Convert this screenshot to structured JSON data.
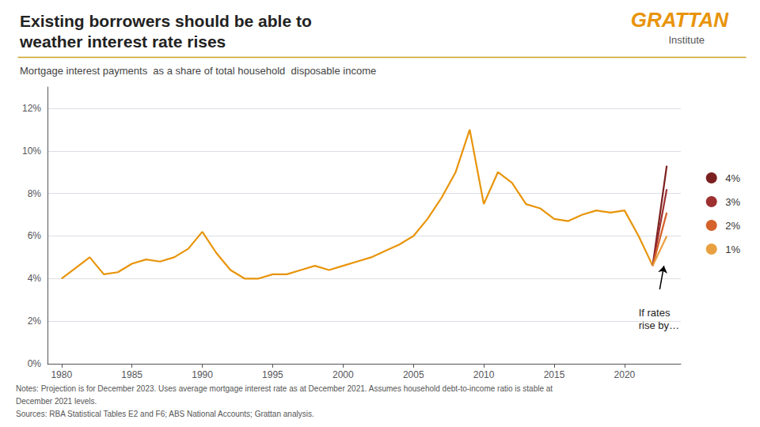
{
  "chart_data": {
    "type": "line",
    "title": "Existing borrowers should be able to\nweather interest rate rises",
    "subtitle": "Mortgage interest payments  as a share of total household  disposable income",
    "logo": [
      "GRATTAN",
      "Institute"
    ],
    "notes": [
      "Notes: Projection is for December 2023. Uses average mortgage interest rate as at December 2021. Assumes household debt-to-income ratio is stable at",
      "December 2021 levels.",
      "Sources: RBA Statistical Tables E2 and F6; ABS National Accounts; Grattan analysis."
    ],
    "annotations": [
      {
        "text": "If rates\nrise by…",
        "x": 2021.0,
        "y": 0.027
      }
    ],
    "arrow": {
      "from": [
        2022.5,
        0.035
      ],
      "to": [
        2022.8,
        0.046
      ]
    },
    "series": [
      {
        "color": "#e8940a",
        "x": [
          1980,
          1981,
          1982,
          1983,
          1984,
          1985,
          1986,
          1987,
          1988,
          1989,
          1990,
          1991,
          1992,
          1993,
          1994,
          1995,
          1996,
          1997,
          1998,
          1999,
          2000,
          2001,
          2002,
          2003,
          2004,
          2005,
          2006,
          2007,
          2008,
          2009,
          2010,
          2011,
          2012,
          2013,
          2014,
          2015,
          2016,
          2017,
          2018,
          2019,
          2020,
          2021,
          2022
        ],
        "values": [
          0.04,
          0.045,
          0.05,
          0.042,
          0.043,
          0.047,
          0.049,
          0.048,
          0.05,
          0.054,
          0.062,
          0.052,
          0.044,
          0.04,
          0.04,
          0.042,
          0.042,
          0.044,
          0.046,
          0.044,
          0.046,
          0.048,
          0.05,
          0.053,
          0.056,
          0.06,
          0.068,
          0.078,
          0.09,
          0.11,
          0.075,
          0.09,
          0.085,
          0.075,
          0.073,
          0.068,
          0.067,
          0.07,
          0.072,
          0.071,
          0.072,
          0.06,
          0.046
        ]
      },
      {
        "name": "4%",
        "color": "#7b2020",
        "x": [
          2022,
          2023
        ],
        "values": [
          0.046,
          0.093
        ]
      },
      {
        "name": "3%",
        "color": "#9e3030",
        "x": [
          2022,
          2023
        ],
        "values": [
          0.046,
          0.082
        ]
      },
      {
        "name": "2%",
        "color": "#d4622a",
        "x": [
          2022,
          2023
        ],
        "values": [
          0.046,
          0.071
        ]
      },
      {
        "name": "1%",
        "color": "#e8a040",
        "x": [
          2022,
          2023
        ],
        "values": [
          0.046,
          0.06
        ]
      }
    ],
    "xlim": [
      1979,
      2024
    ],
    "xticks": [
      1980,
      1985,
      1990,
      1995,
      2000,
      2005,
      2010,
      2015,
      2020
    ],
    "ylim": [
      0,
      0.13
    ],
    "yticks": [
      {
        "value": 0,
        "label": "0%"
      },
      {
        "value": 0.02,
        "label": "2%"
      },
      {
        "value": 0.04,
        "label": "4%"
      },
      {
        "value": 0.06,
        "label": "6%"
      },
      {
        "value": 0.08,
        "label": "8%"
      },
      {
        "value": 0.1,
        "label": "10%"
      },
      {
        "value": 0.12,
        "label": "12%"
      }
    ],
    "grid": true,
    "legend": "right"
  }
}
